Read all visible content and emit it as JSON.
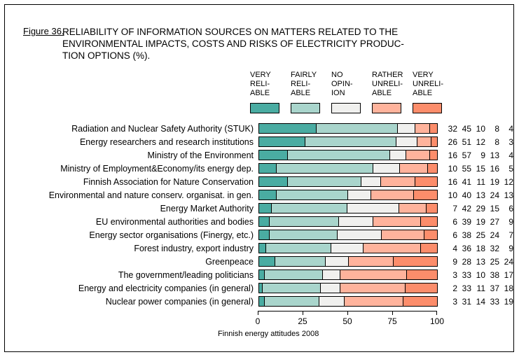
{
  "figure_label": "Figure 36.",
  "title_lines": [
    "RELIABILITY OF INFORMATION SOURCES ON MATTERS RELATED TO THE",
    "ENVIRONMENTAL IMPACTS, COSTS AND RISKS OF ELECTRICITY PRODUC-",
    "TION OPTIONS (%)."
  ],
  "footer": "Finnish energy attitudes 2008",
  "chart_data": {
    "type": "bar",
    "stacked": true,
    "orientation": "horizontal",
    "title": "RELIABILITY OF INFORMATION SOURCES ON MATTERS RELATED TO THE ENVIRONMENTAL IMPACTS, COSTS AND RISKS OF ELECTRICITY PRODUCTION OPTIONS (%).",
    "xlabel": "",
    "ylabel": "",
    "xlim": [
      0,
      100
    ],
    "x_ticks": [
      0,
      25,
      50,
      75,
      100
    ],
    "grid": false,
    "legend_position": "top",
    "value_labels_position": "right",
    "legend": [
      {
        "name": "VERY RELIABLE",
        "label_lines": [
          "VERY",
          "RELI-",
          "ABLE"
        ],
        "color": "#4AACA2"
      },
      {
        "name": "FAIRLY RELIABLE",
        "label_lines": [
          "FAIRLY",
          "RELI-",
          "ABLE"
        ],
        "color": "#A9D5CC"
      },
      {
        "name": "NO OPINION",
        "label_lines": [
          "NO",
          "OPIN-",
          "ION"
        ],
        "color": "#F0F0EE"
      },
      {
        "name": "RATHER UNRELIABLE",
        "label_lines": [
          "RATHER",
          "UNRELI-",
          "ABLE"
        ],
        "color": "#FFB39C"
      },
      {
        "name": "VERY UNRELIABLE",
        "label_lines": [
          "VERY",
          "UNRELI-",
          "ABLE"
        ],
        "color": "#FC8D6B"
      }
    ],
    "categories": [
      "Radiation and Nuclear Safety Authority (STUK)",
      "Energy researchers and research institutions",
      "Ministry of the Environment",
      "Ministry of Employment&Economy/its energy dep.",
      "Finnish Association for Nature Conservation",
      "Environmental and nature conserv. organisat. in gen.",
      "Energy Market Authority",
      "EU environmental authorities and bodies",
      "Energy sector organisations (Finergy, etc.)",
      "Forest industry, export industry",
      "Greenpeace",
      "The government/leading politicians",
      "Energy and electricity companies (in general)",
      "Nuclear power companies (in general)"
    ],
    "series": [
      {
        "name": "VERY RELIABLE",
        "values": [
          32,
          26,
          16,
          10,
          16,
          10,
          7,
          6,
          6,
          4,
          9,
          3,
          2,
          3
        ]
      },
      {
        "name": "FAIRLY RELIABLE",
        "values": [
          45,
          51,
          57,
          55,
          41,
          40,
          42,
          39,
          38,
          36,
          28,
          33,
          33,
          31
        ]
      },
      {
        "name": "NO OPINION",
        "values": [
          10,
          12,
          9,
          15,
          11,
          13,
          29,
          19,
          25,
          18,
          13,
          10,
          11,
          14
        ]
      },
      {
        "name": "RATHER UNRELIABLE",
        "values": [
          8,
          8,
          13,
          16,
          19,
          24,
          15,
          27,
          24,
          32,
          25,
          38,
          37,
          33
        ]
      },
      {
        "name": "VERY UNRELIABLE",
        "values": [
          4,
          3,
          4,
          5,
          12,
          13,
          6,
          9,
          7,
          9,
          24,
          17,
          18,
          19
        ]
      }
    ]
  }
}
